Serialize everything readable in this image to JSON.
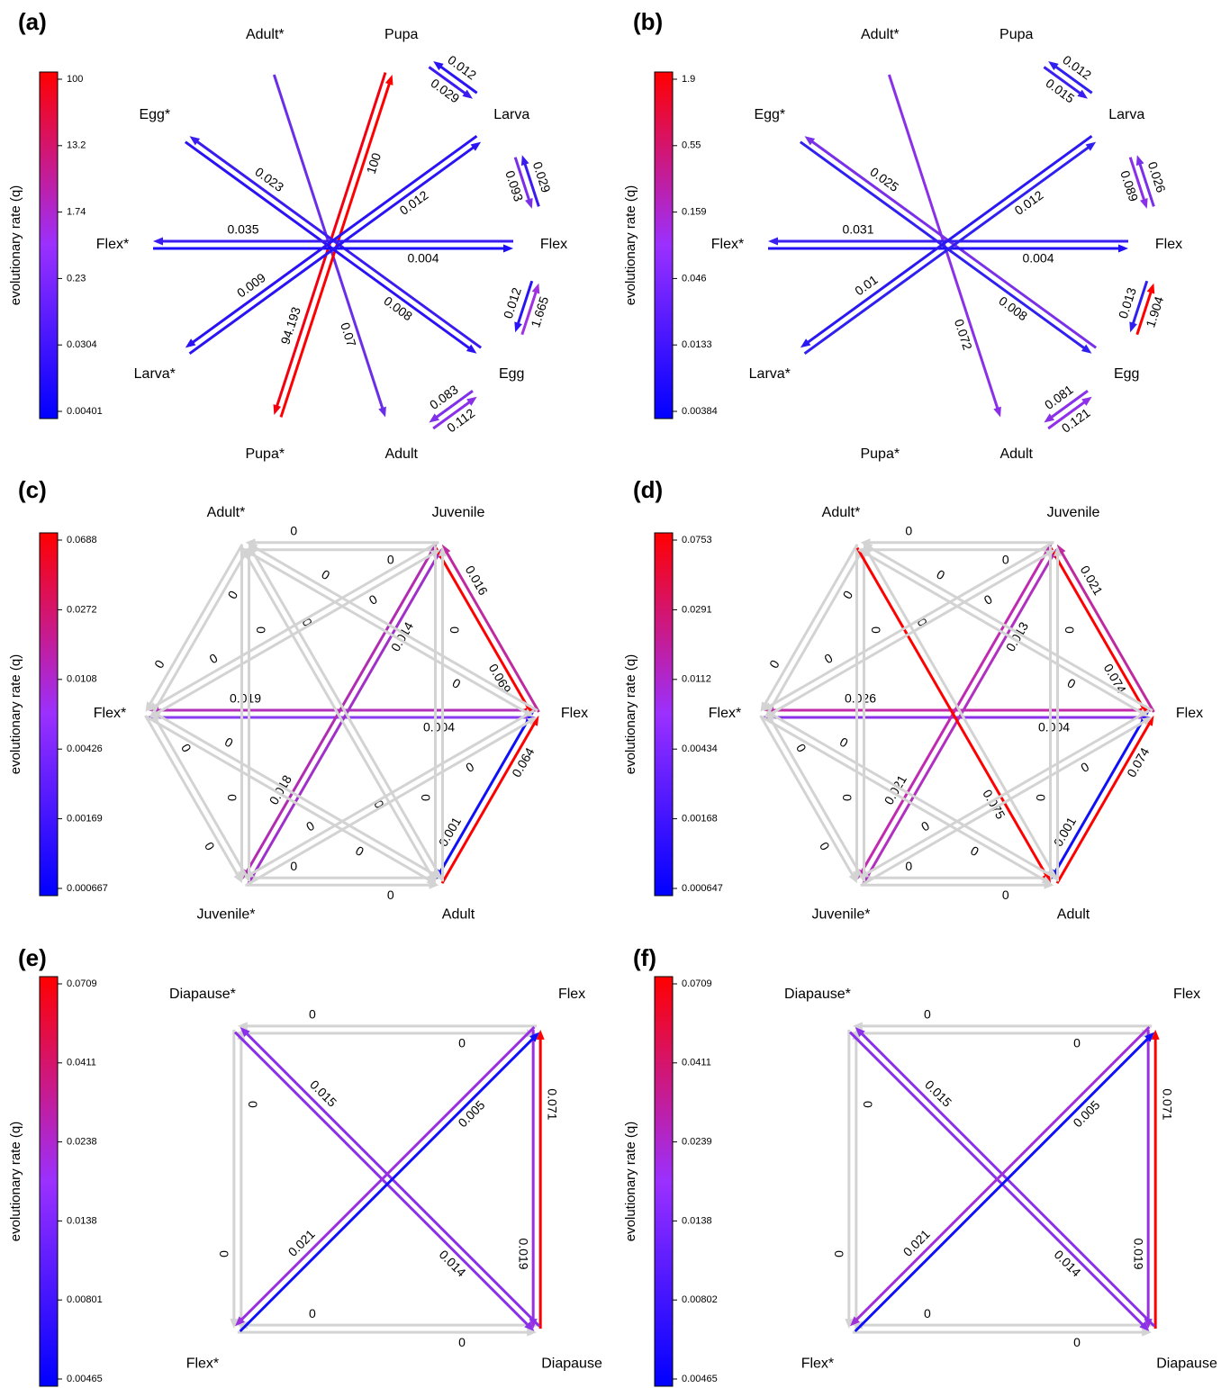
{
  "panels": [
    {
      "label": "(a)",
      "axis_title": "evolutionary rate (q)",
      "colorbar_ticks": [
        "0.00401",
        "0.0304",
        "0.23",
        "1.74",
        "13.2",
        "100"
      ],
      "nodes": [
        "Adult*",
        "Pupa",
        "Larva",
        "Flex",
        "Egg",
        "Adult",
        "Pupa*",
        "Larva*",
        "Flex*",
        "Egg*"
      ],
      "edges": [
        {
          "from": "Adult*",
          "to": "Adult",
          "rate": "0.07",
          "color": "#6a2ee8"
        },
        {
          "from": "Pupa*",
          "to": "Pupa",
          "rate": "100",
          "color": "#ff0000"
        },
        {
          "from": "Pupa",
          "to": "Pupa*",
          "rate": "94.193",
          "color": "#f20010"
        },
        {
          "from": "Egg",
          "to": "Egg*",
          "rate": "0.023",
          "color": "#3a1cf0"
        },
        {
          "from": "Egg*",
          "to": "Egg",
          "rate": "0.008",
          "color": "#2a12f5"
        },
        {
          "from": "Flex",
          "to": "Flex*",
          "rate": "0.035",
          "color": "#3a1cf0"
        },
        {
          "from": "Flex*",
          "to": "Flex",
          "rate": "0.004",
          "color": "#1a0cf8"
        },
        {
          "from": "Larva*",
          "to": "Larva",
          "rate": "0.012",
          "color": "#2a14f4"
        },
        {
          "from": "Larva",
          "to": "Larva*",
          "rate": "0.009",
          "color": "#2a12f5"
        },
        {
          "from": "Larva",
          "to": "Pupa",
          "rate": "0.012",
          "color": "#2a14f4"
        },
        {
          "from": "Pupa",
          "to": "Larva",
          "rate": "0.029",
          "color": "#3a1cf0"
        },
        {
          "from": "Flex",
          "to": "Larva",
          "rate": "0.029",
          "color": "#3a1cf0"
        },
        {
          "from": "Larva",
          "to": "Flex",
          "rate": "0.093",
          "color": "#7a2ee8"
        },
        {
          "from": "Flex",
          "to": "Egg",
          "rate": "0.012",
          "color": "#2a14f4"
        },
        {
          "from": "Egg",
          "to": "Flex",
          "rate": "1.665",
          "color": "#a030e0"
        },
        {
          "from": "Adult",
          "to": "Egg",
          "rate": "0.112",
          "color": "#8a30e8"
        },
        {
          "from": "Egg",
          "to": "Adult",
          "rate": "0.083",
          "color": "#8030e8"
        }
      ]
    },
    {
      "label": "(b)",
      "axis_title": "evolutionary rate (q)",
      "colorbar_ticks": [
        "0.00384",
        "0.0133",
        "0.046",
        "0.159",
        "0.55",
        "1.9"
      ],
      "nodes": [
        "Adult*",
        "Pupa",
        "Larva",
        "Flex",
        "Egg",
        "Adult",
        "Pupa*",
        "Larva*",
        "Flex*",
        "Egg*"
      ],
      "edges": [
        {
          "from": "Adult*",
          "to": "Adult",
          "rate": "0.072",
          "color": "#8a30e8"
        },
        {
          "from": "Egg",
          "to": "Egg*",
          "rate": "0.025",
          "color": "#7a30e8"
        },
        {
          "from": "Egg*",
          "to": "Egg",
          "rate": "0.008",
          "color": "#3020f0"
        },
        {
          "from": "Flex",
          "to": "Flex*",
          "rate": "0.031",
          "color": "#3a20f0"
        },
        {
          "from": "Flex*",
          "to": "Flex",
          "rate": "0.004",
          "color": "#2010f5"
        },
        {
          "from": "Larva*",
          "to": "Larva",
          "rate": "0.012",
          "color": "#3020f0"
        },
        {
          "from": "Larva",
          "to": "Larva*",
          "rate": "0.01",
          "color": "#2a18f2"
        },
        {
          "from": "Larva",
          "to": "Pupa",
          "rate": "0.012",
          "color": "#3020f0"
        },
        {
          "from": "Pupa",
          "to": "Larva",
          "rate": "0.015",
          "color": "#3a20f0"
        },
        {
          "from": "Larva",
          "to": "Flex",
          "rate": "0.089",
          "color": "#8a30e8"
        },
        {
          "from": "Flex",
          "to": "Larva",
          "rate": "0.026",
          "color": "#7a30e8"
        },
        {
          "from": "Flex",
          "to": "Egg",
          "rate": "0.013",
          "color": "#3020f0"
        },
        {
          "from": "Egg",
          "to": "Flex",
          "rate": "1.904",
          "color": "#ff0000"
        },
        {
          "from": "Adult",
          "to": "Egg",
          "rate": "0.121",
          "color": "#9030e8"
        },
        {
          "from": "Egg",
          "to": "Adult",
          "rate": "0.081",
          "color": "#8a30e8"
        }
      ]
    },
    {
      "label": "(c)",
      "axis_title": "evolutionary rate (q)",
      "colorbar_ticks": [
        "0.000667",
        "0.00169",
        "0.00426",
        "0.0108",
        "0.0272",
        "0.0688"
      ],
      "nodes": [
        "Adult*",
        "Juvenile",
        "Flex",
        "Adult",
        "Juvenile*",
        "Flex*"
      ],
      "edges": [
        {
          "from": "Juvenile",
          "to": "Adult*",
          "rate": "0",
          "color": "#d3d3d3"
        },
        {
          "from": "Adult*",
          "to": "Juvenile",
          "rate": "0",
          "color": "#d3d3d3"
        },
        {
          "from": "Adult",
          "to": "Juvenile*",
          "rate": "0",
          "color": "#d3d3d3"
        },
        {
          "from": "Juvenile*",
          "to": "Adult",
          "rate": "0",
          "color": "#d3d3d3"
        },
        {
          "from": "Flex",
          "to": "Flex*",
          "rate": "0.019",
          "color": "#b030b8"
        },
        {
          "from": "Flex*",
          "to": "Flex",
          "rate": "0.004",
          "color": "#8a3df0"
        },
        {
          "from": "Juvenile",
          "to": "Juvenile*",
          "rate": "0.018",
          "color": "#b02cb0"
        },
        {
          "from": "Juvenile*",
          "to": "Juvenile",
          "rate": "0.014",
          "color": "#a030c8"
        },
        {
          "from": "Flex",
          "to": "Juvenile",
          "rate": "0.016",
          "color": "#c02aa0"
        },
        {
          "from": "Juvenile",
          "to": "Flex",
          "rate": "0.069",
          "color": "#ff0000"
        },
        {
          "from": "Flex",
          "to": "Adult",
          "rate": "0.001",
          "color": "#1010f8"
        },
        {
          "from": "Adult",
          "to": "Flex",
          "rate": "0.064",
          "color": "#ff0000"
        },
        {
          "from": "Adult*",
          "to": "Flex*",
          "rate": "0",
          "color": "#d3d3d3"
        },
        {
          "from": "Flex*",
          "to": "Adult*",
          "rate": "0",
          "color": "#d3d3d3"
        },
        {
          "from": "Flex*",
          "to": "Juvenile*",
          "rate": "0",
          "color": "#d3d3d3"
        },
        {
          "from": "Juvenile*",
          "to": "Flex*",
          "rate": "0",
          "color": "#d3d3d3"
        },
        {
          "from": "Adult*",
          "to": "Juvenile*",
          "rate": "0",
          "color": "#d3d3d3"
        },
        {
          "from": "Juvenile*",
          "to": "Adult*",
          "rate": "0",
          "color": "#d3d3d3"
        },
        {
          "from": "Juvenile",
          "to": "Adult",
          "rate": "0",
          "color": "#d3d3d3"
        },
        {
          "from": "Adult",
          "to": "Juvenile",
          "rate": "0",
          "color": "#d3d3d3"
        },
        {
          "from": "Adult*",
          "to": "Adult",
          "rate": "0",
          "color": "#d3d3d3"
        },
        {
          "from": "Adult",
          "to": "Adult*",
          "rate": "0",
          "color": "#d3d3d3"
        },
        {
          "from": "Adult*",
          "to": "Flex",
          "rate": "0",
          "color": "#d3d3d3"
        },
        {
          "from": "Flex",
          "to": "Adult*",
          "rate": "0",
          "color": "#d3d3d3"
        },
        {
          "from": "Juvenile",
          "to": "Flex*",
          "rate": "0",
          "color": "#d3d3d3"
        },
        {
          "from": "Flex*",
          "to": "Juvenile",
          "rate": "0",
          "color": "#d3d3d3"
        },
        {
          "from": "Juvenile*",
          "to": "Flex",
          "rate": "0",
          "color": "#d3d3d3"
        },
        {
          "from": "Flex",
          "to": "Juvenile*",
          "rate": "0",
          "color": "#d3d3d3"
        },
        {
          "from": "Adult",
          "to": "Flex*",
          "rate": "0",
          "color": "#d3d3d3"
        },
        {
          "from": "Flex*",
          "to": "Adult",
          "rate": "0",
          "color": "#d3d3d3"
        }
      ]
    },
    {
      "label": "(d)",
      "axis_title": "evolutionary rate (q)",
      "colorbar_ticks": [
        "0.000647",
        "0.00168",
        "0.00434",
        "0.0112",
        "0.0291",
        "0.0753"
      ],
      "nodes": [
        "Adult*",
        "Juvenile",
        "Flex",
        "Adult",
        "Juvenile*",
        "Flex*"
      ],
      "edges": [
        {
          "from": "Juvenile",
          "to": "Adult*",
          "rate": "0",
          "color": "#d3d3d3"
        },
        {
          "from": "Adult*",
          "to": "Juvenile",
          "rate": "0",
          "color": "#d3d3d3"
        },
        {
          "from": "Adult",
          "to": "Juvenile*",
          "rate": "0",
          "color": "#d3d3d3"
        },
        {
          "from": "Juvenile*",
          "to": "Adult",
          "rate": "0",
          "color": "#d3d3d3"
        },
        {
          "from": "Flex",
          "to": "Flex*",
          "rate": "0.026",
          "color": "#c02aa8"
        },
        {
          "from": "Flex*",
          "to": "Flex",
          "rate": "0.004",
          "color": "#8a30e8"
        },
        {
          "from": "Juvenile",
          "to": "Juvenile*",
          "rate": "0.021",
          "color": "#c02ab0"
        },
        {
          "from": "Juvenile*",
          "to": "Juvenile",
          "rate": "0.013",
          "color": "#b030c0"
        },
        {
          "from": "Flex",
          "to": "Juvenile",
          "rate": "0.021",
          "color": "#c02aa0"
        },
        {
          "from": "Juvenile",
          "to": "Flex",
          "rate": "0.074",
          "color": "#ff0000"
        },
        {
          "from": "Flex",
          "to": "Adult",
          "rate": "0.001",
          "color": "#1010f8"
        },
        {
          "from": "Adult",
          "to": "Flex",
          "rate": "0.074",
          "color": "#ff0000"
        },
        {
          "from": "Adult*",
          "to": "Flex*",
          "rate": "0",
          "color": "#d3d3d3"
        },
        {
          "from": "Flex*",
          "to": "Adult*",
          "rate": "0",
          "color": "#d3d3d3"
        },
        {
          "from": "Flex*",
          "to": "Juvenile*",
          "rate": "0",
          "color": "#d3d3d3"
        },
        {
          "from": "Juvenile*",
          "to": "Flex*",
          "rate": "0",
          "color": "#d3d3d3"
        },
        {
          "from": "Adult*",
          "to": "Juvenile*",
          "rate": "0",
          "color": "#d3d3d3"
        },
        {
          "from": "Juvenile*",
          "to": "Adult*",
          "rate": "0",
          "color": "#d3d3d3"
        },
        {
          "from": "Juvenile",
          "to": "Adult",
          "rate": "0",
          "color": "#d3d3d3"
        },
        {
          "from": "Adult",
          "to": "Juvenile",
          "rate": "0",
          "color": "#d3d3d3"
        },
        {
          "from": "Adult*",
          "to": "Adult",
          "rate": "0.075",
          "color": "#ff0000"
        },
        {
          "from": "Adult",
          "to": "Adult*",
          "rate": "0",
          "color": "#d3d3d3"
        },
        {
          "from": "Adult*",
          "to": "Flex",
          "rate": "0",
          "color": "#d3d3d3"
        },
        {
          "from": "Flex",
          "to": "Adult*",
          "rate": "0",
          "color": "#d3d3d3"
        },
        {
          "from": "Juvenile",
          "to": "Flex*",
          "rate": "0",
          "color": "#d3d3d3"
        },
        {
          "from": "Flex*",
          "to": "Juvenile",
          "rate": "0",
          "color": "#d3d3d3"
        },
        {
          "from": "Juvenile*",
          "to": "Flex",
          "rate": "0",
          "color": "#d3d3d3"
        },
        {
          "from": "Flex",
          "to": "Juvenile*",
          "rate": "0",
          "color": "#d3d3d3"
        },
        {
          "from": "Adult",
          "to": "Flex*",
          "rate": "0",
          "color": "#d3d3d3"
        },
        {
          "from": "Flex*",
          "to": "Adult",
          "rate": "0",
          "color": "#d3d3d3"
        }
      ]
    },
    {
      "label": "(e)",
      "axis_title": "evolutionary rate (q)",
      "colorbar_ticks": [
        "0.00465",
        "0.00801",
        "0.0138",
        "0.0238",
        "0.0411",
        "0.0709"
      ],
      "nodes": [
        "Diapause*",
        "Flex",
        "Diapause",
        "Flex*"
      ],
      "edges": [
        {
          "from": "Flex",
          "to": "Diapause*",
          "rate": "0",
          "color": "#d3d3d3"
        },
        {
          "from": "Diapause*",
          "to": "Flex",
          "rate": "0",
          "color": "#d3d3d3"
        },
        {
          "from": "Diapause",
          "to": "Flex*",
          "rate": "0",
          "color": "#d3d3d3"
        },
        {
          "from": "Flex*",
          "to": "Diapause",
          "rate": "0",
          "color": "#d3d3d3"
        },
        {
          "from": "Diapause*",
          "to": "Flex*",
          "rate": "0",
          "color": "#d3d3d3"
        },
        {
          "from": "Flex*",
          "to": "Diapause*",
          "rate": "0",
          "color": "#d3d3d3"
        },
        {
          "from": "Flex",
          "to": "Diapause",
          "rate": "0.019",
          "color": "#9a30e0"
        },
        {
          "from": "Diapause",
          "to": "Flex",
          "rate": "0.071",
          "color": "#ff0000"
        },
        {
          "from": "Diapause",
          "to": "Diapause*",
          "rate": "0.015",
          "color": "#8a30e8"
        },
        {
          "from": "Diapause*",
          "to": "Diapause",
          "rate": "0.014",
          "color": "#8a30e8"
        },
        {
          "from": "Flex*",
          "to": "Flex",
          "rate": "0.005",
          "color": "#1010f8"
        },
        {
          "from": "Flex",
          "to": "Flex*",
          "rate": "0.021",
          "color": "#9a30e0"
        }
      ]
    },
    {
      "label": "(f)",
      "axis_title": "evolutionary rate (q)",
      "colorbar_ticks": [
        "0.00465",
        "0.00802",
        "0.0138",
        "0.0239",
        "0.0411",
        "0.0709"
      ],
      "nodes": [
        "Diapause*",
        "Flex",
        "Diapause",
        "Flex*"
      ],
      "edges": [
        {
          "from": "Flex",
          "to": "Diapause*",
          "rate": "0",
          "color": "#d3d3d3"
        },
        {
          "from": "Diapause*",
          "to": "Flex",
          "rate": "0",
          "color": "#d3d3d3"
        },
        {
          "from": "Diapause",
          "to": "Flex*",
          "rate": "0",
          "color": "#d3d3d3"
        },
        {
          "from": "Flex*",
          "to": "Diapause",
          "rate": "0",
          "color": "#d3d3d3"
        },
        {
          "from": "Diapause*",
          "to": "Flex*",
          "rate": "0",
          "color": "#d3d3d3"
        },
        {
          "from": "Flex*",
          "to": "Diapause*",
          "rate": "0",
          "color": "#d3d3d3"
        },
        {
          "from": "Flex",
          "to": "Diapause",
          "rate": "0.019",
          "color": "#9a30e0"
        },
        {
          "from": "Diapause",
          "to": "Flex",
          "rate": "0.071",
          "color": "#ff0000"
        },
        {
          "from": "Diapause",
          "to": "Diapause*",
          "rate": "0.015",
          "color": "#8a30e8"
        },
        {
          "from": "Diapause*",
          "to": "Diapause",
          "rate": "0.014",
          "color": "#8a30e8"
        },
        {
          "from": "Flex*",
          "to": "Flex",
          "rate": "0.005",
          "color": "#1010f8"
        },
        {
          "from": "Flex",
          "to": "Flex*",
          "rate": "0.021",
          "color": "#a030d8"
        }
      ]
    }
  ]
}
